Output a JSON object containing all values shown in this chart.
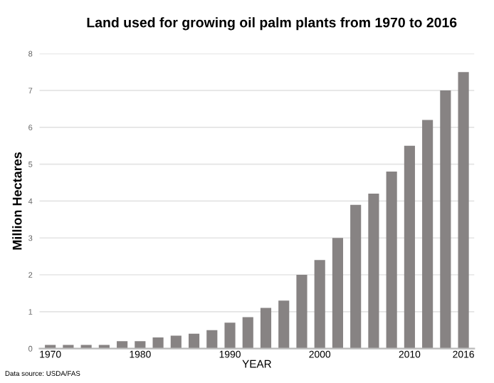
{
  "chart_data": {
    "type": "bar",
    "title": "Land used for growing oil palm plants from 1970 to 2016",
    "xlabel": "YEAR",
    "ylabel": "Million Hectares",
    "categories": [
      "1970",
      null,
      null,
      null,
      null,
      "1980",
      null,
      null,
      null,
      null,
      "1990",
      null,
      null,
      null,
      null,
      "2000",
      null,
      null,
      null,
      null,
      "2010",
      null,
      null,
      "2016"
    ],
    "values": [
      0.1,
      0.1,
      0.1,
      0.1,
      0.2,
      0.2,
      0.3,
      0.35,
      0.4,
      0.5,
      0.7,
      0.85,
      1.1,
      1.3,
      2.0,
      2.4,
      3.0,
      3.9,
      4.2,
      4.8,
      5.5,
      6.2,
      7.0,
      7.5
    ],
    "color": "#878383",
    "ylim": [
      0,
      8
    ],
    "yticks": [
      0,
      1,
      2,
      3,
      4,
      5,
      6,
      7,
      8
    ],
    "grid": "y",
    "annotations": [
      "Data source: USDA/FAS"
    ]
  }
}
